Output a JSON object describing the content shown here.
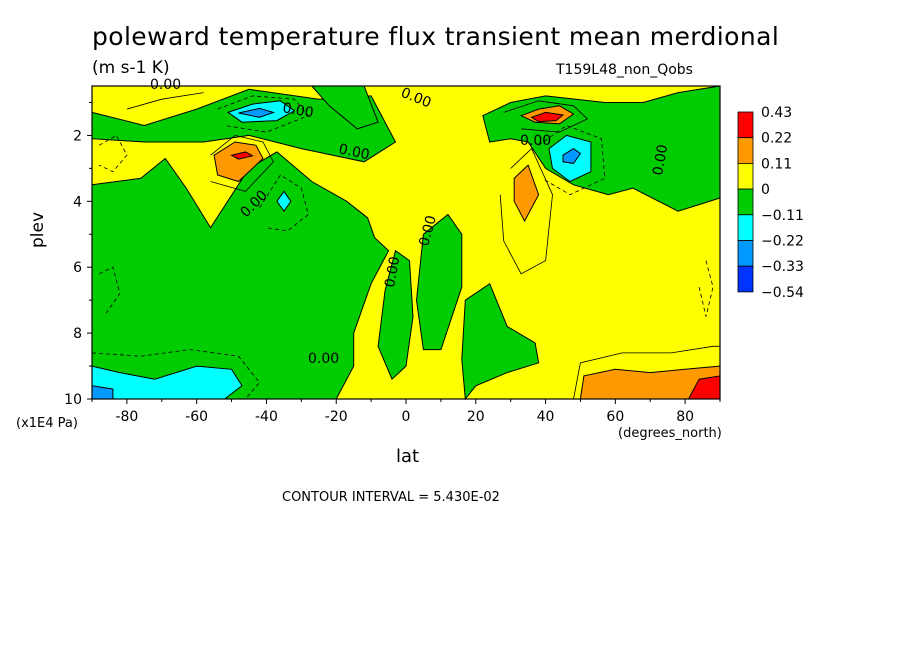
{
  "chart_data": {
    "type": "heatmap",
    "title": "poleward temperature flux transient mean merdional",
    "units": "(m s-1 K)",
    "run_label": "T159L48_non_Qobs",
    "xlabel": "lat",
    "x_units": "(degrees_north)",
    "ylabel": "plev",
    "y_units": "(x1E4 Pa)",
    "contour_interval": "CONTOUR INTERVAL = 5.430E-02",
    "x_ticks": [
      "-80",
      "-60",
      "-40",
      "-20",
      "0",
      "20",
      "40",
      "60",
      "80"
    ],
    "x_tick_values": [
      -80,
      -60,
      -40,
      -20,
      0,
      20,
      40,
      60,
      80
    ],
    "y_ticks": [
      "2",
      "4",
      "6",
      "8",
      "10"
    ],
    "y_tick_values": [
      2,
      4,
      6,
      8,
      10
    ],
    "xlim": [
      -90,
      90
    ],
    "ylim": [
      10,
      0.5
    ],
    "colorbar": {
      "labels": [
        "0.43",
        "0.22",
        "0.11",
        "0",
        "−0.11",
        "−0.22",
        "−0.33",
        "−0.54"
      ],
      "colors": [
        "#ff0000",
        "#ff9900",
        "#ffff00",
        "#00cc00",
        "#00ffff",
        "#0099ff",
        "#0033ff"
      ]
    },
    "contour_labels": [
      "0.00",
      "0.00",
      "0.00",
      "0.00",
      "0.00",
      "0.00",
      "0.00",
      "0.00",
      "0.00",
      "0.00"
    ],
    "regions": [
      {
        "level": "green",
        "points": [
          [
            -90,
            1.3
          ],
          [
            -75,
            1.7
          ],
          [
            -60,
            1.2
          ],
          [
            -45,
            0.6
          ],
          [
            -25,
            0.9
          ],
          [
            -10,
            0.8
          ],
          [
            -3,
            2.2
          ],
          [
            -12,
            2.8
          ],
          [
            -30,
            2.4
          ],
          [
            -45,
            2.0
          ],
          [
            -58,
            2.2
          ],
          [
            -75,
            2.2
          ],
          [
            -90,
            2.1
          ]
        ]
      },
      {
        "level": "green",
        "points": [
          [
            -90,
            3.5
          ],
          [
            -76,
            3.3
          ],
          [
            -69,
            2.7
          ],
          [
            -63,
            3.6
          ],
          [
            -56,
            4.8
          ],
          [
            -45,
            3.0
          ],
          [
            -37,
            2.5
          ],
          [
            -27,
            3.4
          ],
          [
            -17,
            4.0
          ],
          [
            -11,
            4.5
          ],
          [
            -9,
            5.1
          ],
          [
            -5,
            5.5
          ],
          [
            -10,
            6.5
          ],
          [
            -15,
            8.0
          ],
          [
            -15,
            9.0
          ],
          [
            -20,
            10
          ],
          [
            -90,
            10
          ]
        ]
      },
      {
        "level": "green",
        "points": [
          [
            -3,
            5.5
          ],
          [
            1,
            5.8
          ],
          [
            2,
            7.5
          ],
          [
            0,
            9.0
          ],
          [
            -4,
            9.4
          ],
          [
            -8,
            8.4
          ],
          [
            -6,
            6.7
          ]
        ]
      },
      {
        "level": "green",
        "points": [
          [
            5,
            5.0
          ],
          [
            12,
            4.4
          ],
          [
            16,
            5.0
          ],
          [
            16,
            6.6
          ],
          [
            10,
            8.5
          ],
          [
            5,
            8.5
          ],
          [
            3,
            7.0
          ]
        ]
      },
      {
        "level": "green",
        "points": [
          [
            17,
            7.0
          ],
          [
            24,
            6.5
          ],
          [
            29,
            7.8
          ],
          [
            37,
            8.3
          ],
          [
            38,
            8.9
          ],
          [
            29,
            9.2
          ],
          [
            20,
            9.6
          ],
          [
            17,
            10
          ],
          [
            16,
            8.8
          ]
        ]
      },
      {
        "level": "green",
        "points": [
          [
            22,
            1.4
          ],
          [
            30,
            1.0
          ],
          [
            40,
            0.8
          ],
          [
            57,
            1.0
          ],
          [
            68,
            1.0
          ],
          [
            78,
            0.7
          ],
          [
            90,
            0.5
          ],
          [
            90,
            3.9
          ],
          [
            78,
            4.3
          ],
          [
            65,
            3.6
          ],
          [
            58,
            3.8
          ],
          [
            48,
            3.5
          ],
          [
            40,
            3.0
          ],
          [
            35,
            2.2
          ],
          [
            30,
            2.1
          ],
          [
            24,
            2.2
          ]
        ]
      },
      {
        "level": "green",
        "points": [
          [
            -27,
            0.5
          ],
          [
            -12,
            0.5
          ],
          [
            -8,
            1.6
          ],
          [
            -14,
            1.8
          ],
          [
            -22,
            1.1
          ]
        ]
      },
      {
        "level": "cyan",
        "points": [
          [
            -51,
            1.3
          ],
          [
            -44,
            1.05
          ],
          [
            -36,
            0.95
          ],
          [
            -32,
            1.25
          ],
          [
            -37,
            1.55
          ],
          [
            -47,
            1.6
          ]
        ]
      },
      {
        "level": "blue",
        "points": [
          [
            -48,
            1.32
          ],
          [
            -42,
            1.18
          ],
          [
            -38,
            1.3
          ],
          [
            -42,
            1.45
          ]
        ]
      },
      {
        "level": "cyan",
        "points": [
          [
            41,
            2.4
          ],
          [
            46,
            2.0
          ],
          [
            53,
            2.2
          ],
          [
            53,
            3.1
          ],
          [
            47,
            3.4
          ],
          [
            42,
            3.0
          ]
        ]
      },
      {
        "level": "blue",
        "points": [
          [
            45,
            2.6
          ],
          [
            48,
            2.4
          ],
          [
            50,
            2.55
          ],
          [
            48,
            2.85
          ],
          [
            45,
            2.8
          ]
        ]
      },
      {
        "level": "cyan",
        "points": [
          [
            -37,
            4.0
          ],
          [
            -35,
            3.7
          ],
          [
            -33,
            4.0
          ],
          [
            -35,
            4.3
          ]
        ]
      },
      {
        "level": "cyan",
        "points": [
          [
            -90,
            9.0
          ],
          [
            -82,
            9.2
          ],
          [
            -72,
            9.4
          ],
          [
            -60,
            9.0
          ],
          [
            -50,
            9.1
          ],
          [
            -47,
            9.6
          ],
          [
            -52,
            10
          ],
          [
            -90,
            10
          ]
        ]
      },
      {
        "level": "blue",
        "points": [
          [
            -90,
            9.6
          ],
          [
            -84,
            9.7
          ],
          [
            -84,
            10
          ],
          [
            -90,
            10
          ]
        ]
      },
      {
        "level": "orange",
        "points": [
          [
            -55,
            2.6
          ],
          [
            -49,
            2.2
          ],
          [
            -43,
            2.3
          ],
          [
            -41,
            2.7
          ],
          [
            -48,
            3.4
          ],
          [
            -54,
            3.2
          ]
        ]
      },
      {
        "level": "red",
        "points": [
          [
            -50,
            2.6
          ],
          [
            -46,
            2.5
          ],
          [
            -44,
            2.62
          ],
          [
            -48,
            2.72
          ]
        ]
      },
      {
        "level": "orange",
        "points": [
          [
            33,
            1.4
          ],
          [
            38,
            1.2
          ],
          [
            44,
            1.1
          ],
          [
            48,
            1.35
          ],
          [
            44,
            1.65
          ],
          [
            37,
            1.6
          ]
        ]
      },
      {
        "level": "red",
        "points": [
          [
            36,
            1.45
          ],
          [
            40,
            1.3
          ],
          [
            45,
            1.38
          ],
          [
            43,
            1.55
          ],
          [
            38,
            1.58
          ]
        ]
      },
      {
        "level": "orange",
        "points": [
          [
            31,
            3.3
          ],
          [
            35,
            2.9
          ],
          [
            38,
            3.8
          ],
          [
            34,
            4.6
          ],
          [
            31,
            4.0
          ]
        ]
      },
      {
        "level": "orange",
        "points": [
          [
            50,
            10
          ],
          [
            51,
            9.3
          ],
          [
            60,
            9.1
          ],
          [
            70,
            9.2
          ],
          [
            80,
            9.1
          ],
          [
            90,
            9.0
          ],
          [
            90,
            10
          ]
        ]
      },
      {
        "level": "red",
        "points": [
          [
            81,
            10
          ],
          [
            84,
            9.4
          ],
          [
            90,
            9.3
          ],
          [
            90,
            10
          ]
        ]
      }
    ],
    "contour_lines": [
      {
        "style": "solid",
        "points": [
          [
            -56,
            2.6
          ],
          [
            -49,
            2.0
          ],
          [
            -41,
            2.2
          ],
          [
            -38,
            2.8
          ],
          [
            -46,
            3.7
          ],
          [
            -56,
            3.4
          ]
        ]
      },
      {
        "style": "solid",
        "points": [
          [
            28,
            1.3
          ],
          [
            38,
            0.95
          ],
          [
            48,
            1.1
          ],
          [
            52,
            1.5
          ],
          [
            44,
            1.9
          ],
          [
            33,
            1.8
          ]
        ]
      },
      {
        "style": "solid",
        "points": [
          [
            30,
            3.0
          ],
          [
            36,
            2.4
          ],
          [
            42,
            3.8
          ],
          [
            40,
            5.8
          ],
          [
            33,
            6.2
          ],
          [
            28,
            5.2
          ],
          [
            27,
            3.8
          ]
        ]
      },
      {
        "style": "solid",
        "points": [
          [
            48,
            10
          ],
          [
            50,
            8.9
          ],
          [
            62,
            8.6
          ],
          [
            76,
            8.6
          ],
          [
            88,
            8.4
          ],
          [
            90,
            8.4
          ]
        ]
      },
      {
        "style": "solid",
        "points": [
          [
            -80,
            1.2
          ],
          [
            -70,
            0.9
          ],
          [
            -58,
            0.7
          ]
        ]
      },
      {
        "style": "dashed",
        "points": [
          [
            -54,
            1.2
          ],
          [
            -44,
            0.8
          ],
          [
            -32,
            0.9
          ],
          [
            -28,
            1.4
          ],
          [
            -40,
            1.9
          ],
          [
            -52,
            1.7
          ]
        ]
      },
      {
        "style": "dashed",
        "points": [
          [
            38,
            2.3
          ],
          [
            46,
            1.7
          ],
          [
            56,
            2.1
          ],
          [
            57,
            3.3
          ],
          [
            47,
            3.8
          ],
          [
            39,
            3.3
          ]
        ]
      },
      {
        "style": "dashed",
        "points": [
          [
            -90,
            8.6
          ],
          [
            -76,
            8.7
          ],
          [
            -62,
            8.5
          ],
          [
            -48,
            8.7
          ],
          [
            -42,
            9.5
          ],
          [
            -46,
            10
          ]
        ]
      },
      {
        "style": "dashed",
        "points": [
          [
            -42,
            4.2
          ],
          [
            -36,
            3.2
          ],
          [
            -30,
            3.6
          ],
          [
            -28,
            4.4
          ],
          [
            -34,
            4.9
          ],
          [
            -40,
            4.8
          ]
        ]
      },
      {
        "style": "dashed",
        "points": [
          [
            -88,
            2.3
          ],
          [
            -83,
            2.0
          ],
          [
            -80,
            2.6
          ],
          [
            -84,
            3.1
          ],
          [
            -88,
            2.9
          ]
        ]
      },
      {
        "style": "dashed",
        "points": [
          [
            -88,
            6.2
          ],
          [
            -84,
            6.0
          ],
          [
            -82,
            6.8
          ],
          [
            -86,
            7.4
          ]
        ]
      },
      {
        "style": "dashed",
        "points": [
          [
            86,
            5.8
          ],
          [
            88,
            6.6
          ],
          [
            86,
            7.5
          ],
          [
            84,
            6.6
          ]
        ]
      }
    ]
  }
}
